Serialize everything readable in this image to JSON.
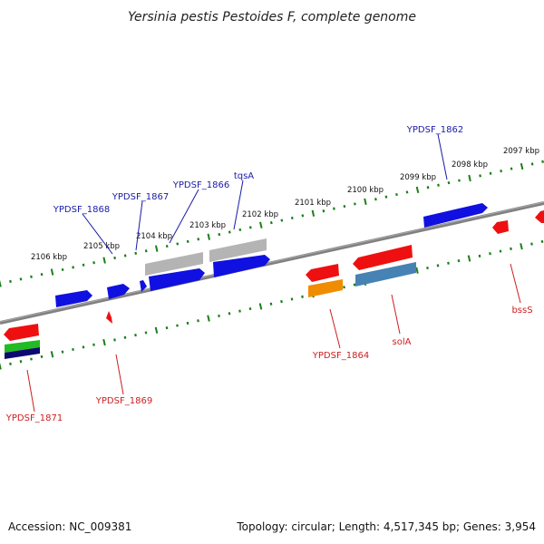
{
  "title": "Yersinia pestis Pestoides F, complete genome",
  "footer": {
    "accession": "Accession: NC_009381",
    "topology": "Topology: circular; Length: 4,517,345 bp; Genes: 3,954"
  },
  "colors": {
    "backbone": "#808080",
    "tick": "#1a7f1a",
    "label_forward": "#1a1aa8",
    "label_reverse": "#cc1f1f",
    "gene_blue": "#1010e0",
    "gene_red": "#ee1010",
    "gene_gray": "#b4b4b4",
    "gene_orange": "#f08c00",
    "gene_steel": "#4682b4",
    "gene_green": "#22bb22",
    "gene_navy": "#0a0a70"
  },
  "scale_ticks": [
    "2106 kbp",
    "2105 kbp",
    "2104 kbp",
    "2103 kbp",
    "2102 kbp",
    "2101 kbp",
    "2100 kbp",
    "2099 kbp",
    "2098 kbp",
    "2097 kbp"
  ],
  "gene_labels": {
    "forward": [
      "YPDSF_1868",
      "YPDSF_1867",
      "YPDSF_1866",
      "tqsA",
      "YPDSF_1862"
    ],
    "reverse": [
      "YPDSF_1871",
      "YPDSF_1869",
      "YPDSF_1864",
      "solA",
      "bssS"
    ]
  }
}
